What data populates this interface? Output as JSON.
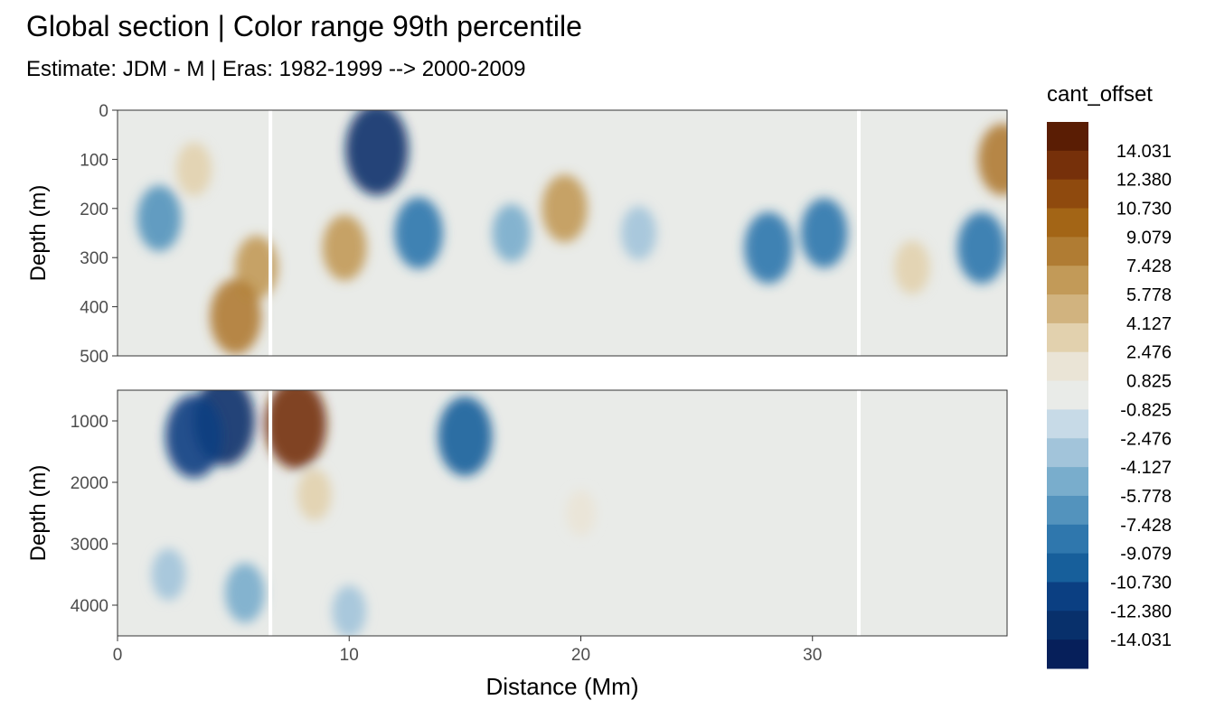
{
  "chart_data": {
    "type": "heatmap",
    "title": "Global section | Color range 99th percentile",
    "subtitle": "Estimate: JDM - M | Eras: 1982-1999 --> 2000-2009",
    "xlabel": "Distance (Mm)",
    "xlim": [
      0,
      38.4
    ],
    "xticks": [
      0,
      10,
      20,
      30
    ],
    "x_tick_labels": [
      "0",
      "10",
      "20",
      "30"
    ],
    "legend": {
      "title": "cant_offset",
      "position": "right",
      "labels": [
        "14.031",
        "12.380",
        "10.730",
        "9.079",
        "7.428",
        "5.778",
        "4.127",
        "2.476",
        "0.825",
        "-0.825",
        "-2.476",
        "-4.127",
        "-5.778",
        "-7.428",
        "-9.079",
        "-10.730",
        "-12.380",
        "-14.031"
      ],
      "colors": [
        "#5a1d04",
        "#76300a",
        "#8f4a0e",
        "#a36516",
        "#b07c33",
        "#c29a58",
        "#d1b37f",
        "#e2d1ae",
        "#eae4d6",
        "#e9ebe8",
        "#c7dae7",
        "#a2c4da",
        "#79adcc",
        "#5393bd",
        "#2f77ad",
        "#175f9b",
        "#0b3f82",
        "#08306b",
        "#061f5a"
      ]
    },
    "panels": [
      {
        "ylabel": "Depth (m)",
        "ylim": [
          500,
          0
        ],
        "yticks": [
          0,
          100,
          200,
          300,
          400,
          500
        ],
        "y_tick_labels": [
          "0",
          "100",
          "200",
          "300",
          "400",
          "500"
        ],
        "data_gaps_x": [
          6.6,
          32.0
        ],
        "anomalies": [
          {
            "x": 1.8,
            "depth": 220,
            "value": -6.5
          },
          {
            "x": 3.3,
            "depth": 120,
            "value": 3.5
          },
          {
            "x": 6.0,
            "depth": 320,
            "value": 6.0
          },
          {
            "x": 9.8,
            "depth": 280,
            "value": 6.5
          },
          {
            "x": 11.2,
            "depth": 80,
            "value": -13.0
          },
          {
            "x": 13.0,
            "depth": 250,
            "value": -8.0
          },
          {
            "x": 19.3,
            "depth": 200,
            "value": 7.0
          },
          {
            "x": 17.0,
            "depth": 250,
            "value": -4.5
          },
          {
            "x": 22.5,
            "depth": 250,
            "value": -3.5
          },
          {
            "x": 28.1,
            "depth": 280,
            "value": -8.0
          },
          {
            "x": 30.5,
            "depth": 250,
            "value": -7.5
          },
          {
            "x": 37.3,
            "depth": 280,
            "value": -8.0
          },
          {
            "x": 38.2,
            "depth": 100,
            "value": 8.0
          },
          {
            "x": 5.1,
            "depth": 420,
            "value": 9.0
          },
          {
            "x": 34.3,
            "depth": 320,
            "value": 3.5
          }
        ]
      },
      {
        "ylabel": "Depth (m)",
        "ylim": [
          4500,
          500
        ],
        "yticks": [
          1000,
          2000,
          3000,
          4000
        ],
        "y_tick_labels": [
          "1000",
          "2000",
          "3000",
          "4000"
        ],
        "data_gaps_x": [
          6.6,
          32.0
        ],
        "anomalies": [
          {
            "x": 4.6,
            "depth": 1000,
            "value": -12.5
          },
          {
            "x": 3.3,
            "depth": 1250,
            "value": -11.0
          },
          {
            "x": 7.7,
            "depth": 1050,
            "value": 12.5
          },
          {
            "x": 15.0,
            "depth": 1250,
            "value": -10.0
          },
          {
            "x": 8.5,
            "depth": 2200,
            "value": 3.0
          },
          {
            "x": 5.5,
            "depth": 3800,
            "value": -5.0
          },
          {
            "x": 10.0,
            "depth": 4100,
            "value": -3.0
          },
          {
            "x": 20.0,
            "depth": 2500,
            "value": 1.5
          },
          {
            "x": 2.2,
            "depth": 3500,
            "value": -3.0
          }
        ]
      }
    ]
  }
}
